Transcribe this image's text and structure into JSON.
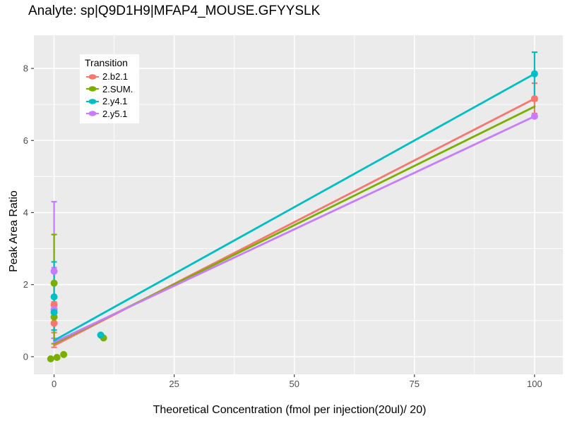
{
  "chart_data": {
    "type": "scatter",
    "title": "Analyte: sp|Q9D1H9|MFAP4_MOUSE.GFYYSLK",
    "xlabel": "Theoretical Concentration (fmol per injection(20ul)/ 20)",
    "ylabel": "Peak Area Ratio",
    "legend_title": "Transition",
    "legend_position": "top-left-inside",
    "xlim": [
      -4.2,
      105.9
    ],
    "ylim": [
      -0.49,
      8.92
    ],
    "x_major_ticks": [
      0,
      25,
      50,
      75,
      100
    ],
    "x_minor_ticks": [
      12.5,
      37.5,
      62.5,
      87.5
    ],
    "y_major_ticks": [
      0,
      2,
      4,
      6,
      8
    ],
    "y_minor_ticks": [
      1,
      3,
      5,
      7
    ],
    "grid": true,
    "colors": {
      "panel_background": "#EBEBEB",
      "gridline": "#FFFFFF",
      "tick_label": "#4D4D4D",
      "tick_mark": "#333333",
      "text": "#000000",
      "legend_background": "#FFFFFF"
    },
    "series": [
      {
        "name": "2.b2.1",
        "color": "#F8766D",
        "points": [
          [
            0,
            1.44
          ],
          [
            0,
            0.93
          ],
          [
            100,
            7.16
          ]
        ],
        "error_bars": [
          [
            0,
            0.26,
            1.52
          ],
          [
            0,
            0.67,
            1.44
          ],
          [
            100,
            6.75,
            7.59
          ]
        ],
        "fit_line": [
          [
            0,
            0.31
          ],
          [
            100,
            7.16
          ]
        ]
      },
      {
        "name": "2.SUM.",
        "color": "#7CAE00",
        "points": [
          [
            -0.7,
            -0.06
          ],
          [
            0.6,
            -0.02
          ],
          [
            2,
            0.06
          ],
          [
            0,
            2.04
          ],
          [
            0,
            1.1
          ],
          [
            10.3,
            0.52
          ]
        ],
        "error_bars": [
          [
            0,
            0.36,
            3.39
          ]
        ],
        "fit_line": [
          [
            0,
            0.36
          ],
          [
            100,
            6.94
          ]
        ]
      },
      {
        "name": "2.y4.1",
        "color": "#00BFC4",
        "points": [
          [
            0,
            1.66
          ],
          [
            0,
            1.23
          ],
          [
            9.7,
            0.6
          ],
          [
            100,
            7.85
          ]
        ],
        "error_bars": [
          [
            0,
            0.74,
            2.63
          ],
          [
            100,
            7.1,
            8.45
          ]
        ],
        "fit_line": [
          [
            0,
            0.45
          ],
          [
            100,
            7.85
          ]
        ]
      },
      {
        "name": "2.y5.1",
        "color": "#C77CFF",
        "points": [
          [
            0,
            2.37
          ],
          [
            0,
            1.31
          ],
          [
            100,
            6.67
          ]
        ],
        "error_bars": [
          [
            0,
            0.51,
            4.3
          ],
          [
            0,
            1.31,
            2.47
          ]
        ],
        "fit_line": [
          [
            0,
            0.4
          ],
          [
            100,
            6.67
          ]
        ]
      }
    ]
  }
}
